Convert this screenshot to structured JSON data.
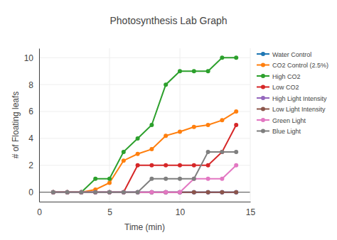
{
  "chart_data": {
    "type": "line",
    "title": "Photosynthesis Lab Graph",
    "x_label": "Time (min)",
    "y_label": "# of Floating leafs",
    "x": [
      1,
      2,
      3,
      4,
      5,
      6,
      7,
      8,
      9,
      10,
      11,
      12,
      13,
      14
    ],
    "series": [
      {
        "name": "Water Control",
        "color": "#1f77b4",
        "values": [
          0,
          0,
          0,
          0,
          0,
          0,
          0,
          0,
          0,
          0,
          0,
          0,
          0,
          0
        ]
      },
      {
        "name": "CO2 Control (2.5%)",
        "color": "#ff7f0e",
        "values": [
          0,
          0,
          0,
          0.2,
          0.7,
          2.35,
          2.85,
          3.2,
          4.2,
          4.5,
          4.85,
          5,
          5.35,
          6
        ]
      },
      {
        "name": "High CO2",
        "color": "#2ca02c",
        "values": [
          0,
          0,
          0,
          1,
          1,
          3,
          4,
          5,
          8,
          9,
          9,
          9,
          10,
          10
        ]
      },
      {
        "name": "Low CO2",
        "color": "#d62728",
        "values": [
          0,
          0,
          0,
          0,
          0,
          0,
          2,
          2,
          2,
          2,
          2,
          2,
          3,
          5
        ]
      },
      {
        "name": "High Light Intensity",
        "color": "#9467bd",
        "values": [
          0,
          0,
          0,
          0,
          0,
          0,
          0,
          0,
          0,
          0,
          0,
          0,
          0,
          0
        ]
      },
      {
        "name": "Low Light Intensity",
        "color": "#8c564b",
        "values": [
          0,
          0,
          0,
          0,
          0,
          0,
          0,
          0,
          0,
          0,
          0,
          0,
          0,
          0
        ]
      },
      {
        "name": "Green Light",
        "color": "#e377c2",
        "values": [
          0,
          0,
          0,
          0,
          0,
          0,
          0,
          0,
          0,
          0,
          1,
          1,
          1,
          2
        ]
      },
      {
        "name": "Blue Light",
        "color": "#7f7f7f",
        "values": [
          0,
          0,
          0,
          0,
          0,
          0,
          0,
          1,
          1,
          1,
          1,
          3,
          3,
          3
        ]
      }
    ],
    "xlim": [
      0,
      15
    ],
    "xticks": [
      0,
      5,
      10,
      15
    ],
    "ylim": [
      -0.7,
      10.7
    ],
    "yticks": [
      0,
      2,
      4,
      6,
      8,
      10
    ],
    "grid": true,
    "legend": "upper right",
    "marker": "circle",
    "line_style": "solid"
  }
}
